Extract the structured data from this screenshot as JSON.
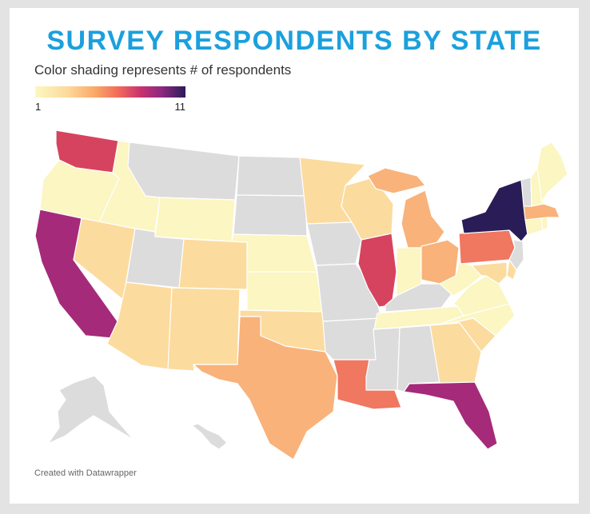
{
  "title": "SURVEY RESPONDENTS BY STATE",
  "subtitle": "Color shading represents # of respondents",
  "legend": {
    "min_label": "1",
    "max_label": "11"
  },
  "credit": "Created with Datawrapper",
  "colors": {
    "no_data": "#dcdcdd",
    "c1": "#fbf6c2",
    "c2": "#fcdb9e",
    "c3": "#f9b27a",
    "c4": "#f07760",
    "c5": "#d6435e",
    "c6": "#a52a7a",
    "c11": "#2a1c56",
    "title": "#1ba0dd"
  },
  "states": [
    {
      "code": "WA",
      "level": "c5"
    },
    {
      "code": "OR",
      "level": "c1"
    },
    {
      "code": "CA",
      "level": "c6"
    },
    {
      "code": "ID",
      "level": "c1"
    },
    {
      "code": "NV",
      "level": "c2"
    },
    {
      "code": "MT",
      "level": "no_data"
    },
    {
      "code": "WY",
      "level": "c1"
    },
    {
      "code": "UT",
      "level": "no_data"
    },
    {
      "code": "AZ",
      "level": "c2"
    },
    {
      "code": "CO",
      "level": "c2"
    },
    {
      "code": "NM",
      "level": "c2"
    },
    {
      "code": "ND",
      "level": "no_data"
    },
    {
      "code": "SD",
      "level": "no_data"
    },
    {
      "code": "NE",
      "level": "c1"
    },
    {
      "code": "KS",
      "level": "c1"
    },
    {
      "code": "OK",
      "level": "c2"
    },
    {
      "code": "TX",
      "level": "c3"
    },
    {
      "code": "MN",
      "level": "c2"
    },
    {
      "code": "IA",
      "level": "no_data"
    },
    {
      "code": "MO",
      "level": "no_data"
    },
    {
      "code": "AR",
      "level": "no_data"
    },
    {
      "code": "LA",
      "level": "c4"
    },
    {
      "code": "WI",
      "level": "c2"
    },
    {
      "code": "IL",
      "level": "c5"
    },
    {
      "code": "MI",
      "level": "c3"
    },
    {
      "code": "IN",
      "level": "c1"
    },
    {
      "code": "OH",
      "level": "c3"
    },
    {
      "code": "KY",
      "level": "no_data"
    },
    {
      "code": "TN",
      "level": "c1"
    },
    {
      "code": "MS",
      "level": "no_data"
    },
    {
      "code": "AL",
      "level": "no_data"
    },
    {
      "code": "GA",
      "level": "c2"
    },
    {
      "code": "FL",
      "level": "c6"
    },
    {
      "code": "SC",
      "level": "c2"
    },
    {
      "code": "NC",
      "level": "c1"
    },
    {
      "code": "VA",
      "level": "c1"
    },
    {
      "code": "WV",
      "level": "c1"
    },
    {
      "code": "PA",
      "level": "c4"
    },
    {
      "code": "NY",
      "level": "c11"
    },
    {
      "code": "NJ",
      "level": "no_data"
    },
    {
      "code": "DE",
      "level": "c2"
    },
    {
      "code": "MD",
      "level": "c2"
    },
    {
      "code": "CT",
      "level": "c1"
    },
    {
      "code": "RI",
      "level": "c1"
    },
    {
      "code": "MA",
      "level": "c3"
    },
    {
      "code": "VT",
      "level": "no_data"
    },
    {
      "code": "NH",
      "level": "c1"
    },
    {
      "code": "ME",
      "level": "c1"
    },
    {
      "code": "AK",
      "level": "no_data"
    },
    {
      "code": "HI",
      "level": "no_data"
    }
  ]
}
